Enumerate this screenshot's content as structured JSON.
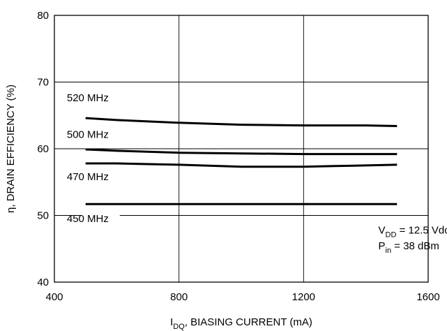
{
  "chart_data": {
    "type": "line",
    "xlabel": {
      "main": "I",
      "sub": "DQ",
      "rest": ", BIASING CURRENT (mA)"
    },
    "ylabel": {
      "symbol": "η",
      "rest": ", DRAIN EFFICIENCY (%)"
    },
    "xlim": [
      400,
      1600
    ],
    "ylim": [
      40,
      80
    ],
    "xticks": [
      400,
      800,
      1200,
      1600
    ],
    "yticks": [
      40,
      50,
      60,
      70,
      80
    ],
    "grid": true,
    "series": [
      {
        "name": "520 MHz",
        "x": [
          500,
          600,
          800,
          1000,
          1200,
          1400,
          1500
        ],
        "y": [
          64.6,
          64.3,
          63.9,
          63.6,
          63.5,
          63.5,
          63.4
        ]
      },
      {
        "name": "500 MHz",
        "x": [
          500,
          600,
          800,
          1000,
          1200,
          1400,
          1500
        ],
        "y": [
          59.9,
          59.7,
          59.4,
          59.3,
          59.2,
          59.2,
          59.2
        ]
      },
      {
        "name": "470 MHz",
        "x": [
          500,
          600,
          700,
          800,
          1000,
          1200,
          1300,
          1400,
          1500
        ],
        "y": [
          57.8,
          57.8,
          57.7,
          57.6,
          57.3,
          57.3,
          57.4,
          57.5,
          57.6
        ]
      },
      {
        "name": "450 MHz",
        "x": [
          500,
          800,
          1000,
          1200,
          1500
        ],
        "y": [
          51.7,
          51.7,
          51.7,
          51.7,
          51.7
        ]
      }
    ],
    "annotations": [
      {
        "main": "V",
        "sub": "DD",
        "rest": " = 12.5 Vdc"
      },
      {
        "main": "P",
        "sub": "in",
        "rest": " = 38 dBm"
      }
    ]
  }
}
